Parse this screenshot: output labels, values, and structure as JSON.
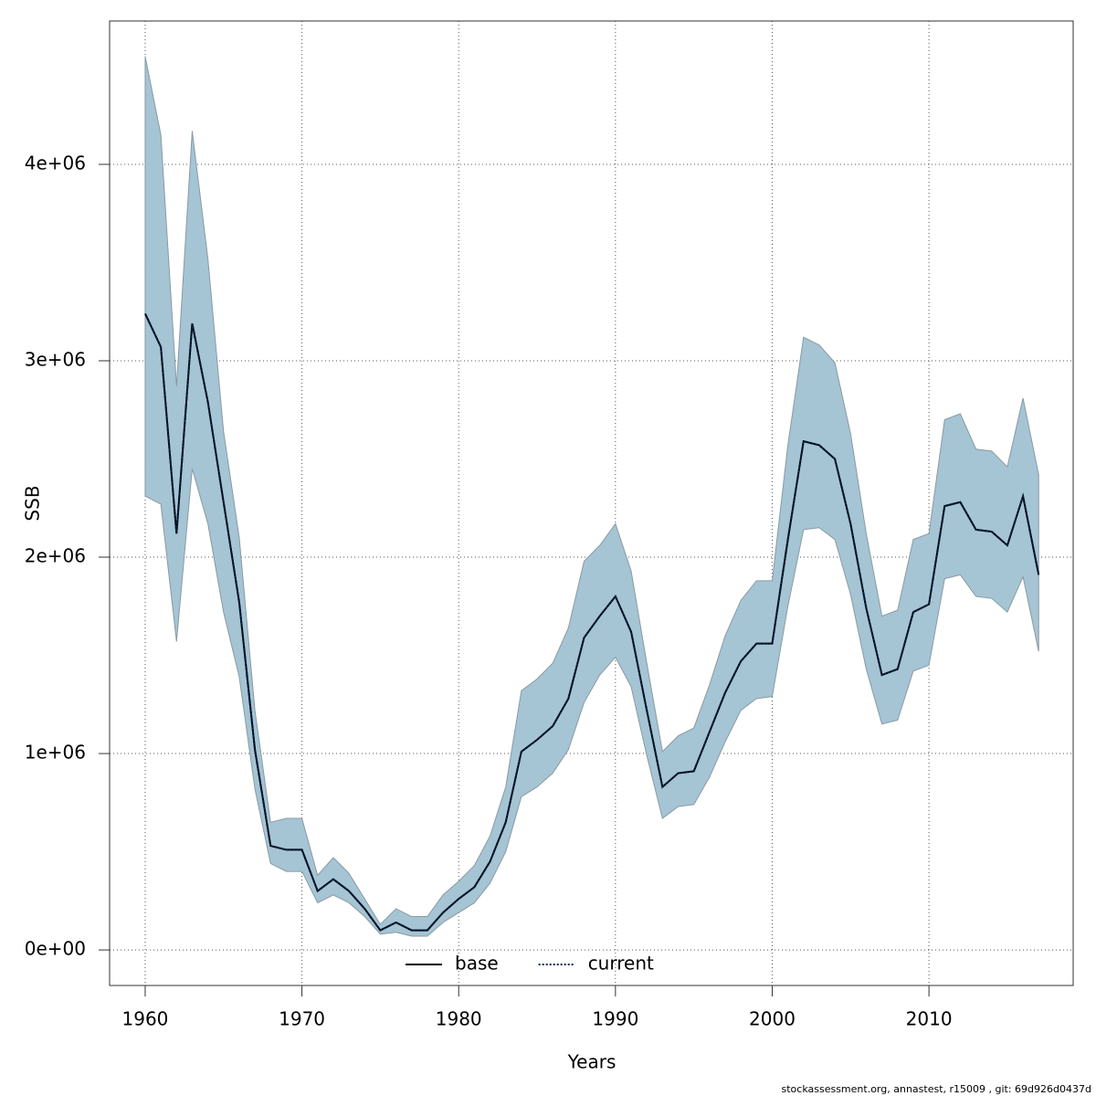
{
  "chart_data": {
    "type": "line",
    "x_label": "Years",
    "y_label": "SSB",
    "annotation": "stockassessment.org, annastest, r15009 , git: 69d926d0437d",
    "x": [
      1960,
      1961,
      1962,
      1963,
      1964,
      1965,
      1966,
      1967,
      1968,
      1969,
      1970,
      1971,
      1972,
      1973,
      1974,
      1975,
      1976,
      1977,
      1978,
      1979,
      1980,
      1981,
      1982,
      1983,
      1984,
      1985,
      1986,
      1987,
      1988,
      1989,
      1990,
      1991,
      1992,
      1993,
      1994,
      1995,
      1996,
      1997,
      1998,
      1999,
      2000,
      2001,
      2002,
      2003,
      2004,
      2005,
      2006,
      2007,
      2008,
      2009,
      2010,
      2011,
      2012,
      2013,
      2014,
      2015,
      2016,
      2017
    ],
    "series": [
      {
        "name": "base",
        "color": "#000000",
        "dash": "solid",
        "values": [
          3240000.0,
          3070000.0,
          2120000.0,
          3190000.0,
          2790000.0,
          2280000.0,
          1770000.0,
          1020000.0,
          530000.0,
          510000.0,
          510000.0,
          300000.0,
          360000.0,
          300000.0,
          210000.0,
          100000.0,
          140000.0,
          100000.0,
          100000.0,
          190000.0,
          260000.0,
          320000.0,
          450000.0,
          650000.0,
          1010000.0,
          1070000.0,
          1140000.0,
          1280000.0,
          1590000.0,
          1700000.0,
          1800000.0,
          1620000.0,
          1220000.0,
          830000.0,
          900000.0,
          910000.0,
          1110000.0,
          1310000.0,
          1470000.0,
          1560000.0,
          1560000.0,
          2090000.0,
          2590000.0,
          2570000.0,
          2500000.0,
          2170000.0,
          1740000.0,
          1400000.0,
          1430000.0,
          1720000.0,
          1760000.0,
          2260000.0,
          2280000.0,
          2140000.0,
          2130000.0,
          2060000.0,
          2310000.0,
          1910000.0
        ]
      },
      {
        "name": "current",
        "color": "#00264d",
        "dash": "dotted",
        "values": [
          3240000.0,
          3070000.0,
          2120000.0,
          3190000.0,
          2790000.0,
          2280000.0,
          1770000.0,
          1020000.0,
          530000.0,
          510000.0,
          510000.0,
          300000.0,
          360000.0,
          300000.0,
          210000.0,
          100000.0,
          140000.0,
          100000.0,
          100000.0,
          190000.0,
          260000.0,
          320000.0,
          450000.0,
          650000.0,
          1010000.0,
          1070000.0,
          1140000.0,
          1280000.0,
          1590000.0,
          1700000.0,
          1800000.0,
          1620000.0,
          1220000.0,
          830000.0,
          900000.0,
          910000.0,
          1110000.0,
          1310000.0,
          1470000.0,
          1560000.0,
          1560000.0,
          2090000.0,
          2590000.0,
          2570000.0,
          2500000.0,
          2170000.0,
          1740000.0,
          1400000.0,
          1430000.0,
          1720000.0,
          1760000.0,
          2260000.0,
          2280000.0,
          2140000.0,
          2130000.0,
          2060000.0,
          2310000.0,
          1910000.0
        ]
      }
    ],
    "band": {
      "color": "#a5c4d4",
      "upper": [
        4550000.0,
        4150000.0,
        2870000.0,
        4170000.0,
        3520000.0,
        2640000.0,
        2100000.0,
        1220000.0,
        650000.0,
        670000.0,
        670000.0,
        380000.0,
        470000.0,
        390000.0,
        260000.0,
        130000.0,
        210000.0,
        170000.0,
        170000.0,
        280000.0,
        350000.0,
        430000.0,
        580000.0,
        830000.0,
        1320000.0,
        1380000.0,
        1460000.0,
        1640000.0,
        1980000.0,
        2060000.0,
        2170000.0,
        1930000.0,
        1460000.0,
        1010000.0,
        1090000.0,
        1130000.0,
        1350000.0,
        1600000.0,
        1780000.0,
        1880000.0,
        1880000.0,
        2570000.0,
        3120000.0,
        3080000.0,
        2990000.0,
        2630000.0,
        2120000.0,
        1700000.0,
        1730000.0,
        2090000.0,
        2120000.0,
        2700000.0,
        2730000.0,
        2550000.0,
        2540000.0,
        2460000.0,
        2810000.0,
        2420000.0
      ],
      "lower": [
        2310000.0,
        2270000.0,
        1570000.0,
        2450000.0,
        2170000.0,
        1720000.0,
        1390000.0,
        820000.0,
        440000.0,
        400000.0,
        400000.0,
        240000.0,
        280000.0,
        240000.0,
        170000.0,
        80000.0,
        90000.0,
        70000.0,
        70000.0,
        140000.0,
        190000.0,
        240000.0,
        340000.0,
        500000.0,
        780000.0,
        830000.0,
        900000.0,
        1020000.0,
        1260000.0,
        1400000.0,
        1490000.0,
        1340000.0,
        990000.0,
        670000.0,
        730000.0,
        740000.0,
        880000.0,
        1060000.0,
        1220000.0,
        1280000.0,
        1290000.0,
        1750000.0,
        2140000.0,
        2150000.0,
        2090000.0,
        1810000.0,
        1430000.0,
        1150000.0,
        1170000.0,
        1420000.0,
        1450000.0,
        1890000.0,
        1910000.0,
        1800000.0,
        1790000.0,
        1720000.0,
        1900000.0,
        1520000.0
      ]
    },
    "xlim": [
      1957.73,
      2019.2
    ],
    "xticks": [
      1960,
      1970,
      1980,
      1990,
      2000,
      2010
    ],
    "ylim": [
      -181000,
      4730000
    ],
    "yticks": [
      {
        "value": 0,
        "label": "0e+00"
      },
      {
        "value": 1000000,
        "label": "1e+06"
      },
      {
        "value": 2000000,
        "label": "2e+06"
      },
      {
        "value": 3000000,
        "label": "3e+06"
      },
      {
        "value": 4000000,
        "label": "4e+06"
      }
    ],
    "grid": true,
    "legend": "bottom"
  }
}
